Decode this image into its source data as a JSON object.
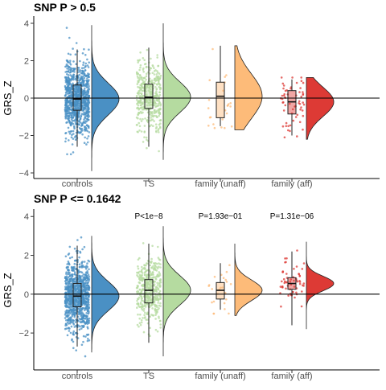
{
  "chart_data": [
    {
      "type": "raincloud",
      "title": "SNP P > 0.5",
      "ylabel": "GRS_Z",
      "ylim": [
        -4.3,
        4.3
      ],
      "yticks": [
        -4,
        -2,
        0,
        2,
        4
      ],
      "reference_line": 0,
      "categories": [
        "controls",
        "TS",
        "family (unaff)",
        "family (aff)"
      ],
      "colors": [
        "#4a90c4",
        "#b5dba0",
        "#fdbb79",
        "#dd3a35"
      ],
      "groups": [
        {
          "name": "controls",
          "box": {
            "whisker_low": -2.6,
            "q1": -0.65,
            "median": -0.05,
            "q3": 0.7,
            "whisker_high": 2.6
          },
          "points_range": [
            -3.0,
            3.8
          ],
          "density_range": [
            -3.9,
            3.9
          ],
          "n_points": 900
        },
        {
          "name": "TS",
          "box": {
            "whisker_low": -2.6,
            "q1": -0.55,
            "median": 0.05,
            "q3": 0.75,
            "whisker_high": 2.7
          },
          "points_range": [
            -3.2,
            3.9
          ],
          "density_range": [
            -3.3,
            4.0
          ],
          "n_points": 420
        },
        {
          "name": "family (unaff)",
          "box": {
            "whisker_low": -1.5,
            "q1": -1.05,
            "median": 0.1,
            "q3": 0.85,
            "whisker_high": 2.8
          },
          "points_range": [
            -1.6,
            2.8
          ],
          "density_range": [
            -1.7,
            2.8
          ],
          "n_points": 24
        },
        {
          "name": "family (aff)",
          "box": {
            "whisker_low": -2.0,
            "q1": -0.85,
            "median": -0.2,
            "q3": 0.4,
            "whisker_high": 1.0
          },
          "points_range": [
            -2.1,
            1.1
          ],
          "density_range": [
            -2.2,
            1.1
          ],
          "n_points": 60
        }
      ]
    },
    {
      "type": "raincloud",
      "title": "SNP P <= 0.1642",
      "ylabel": "GRS_Z",
      "ylim": [
        -3.9,
        4.3
      ],
      "yticks": [
        -2,
        0,
        2,
        4
      ],
      "reference_line": 0,
      "categories": [
        "controls",
        "TS",
        "family (unaff)",
        "family (aff)"
      ],
      "colors": [
        "#4a90c4",
        "#b5dba0",
        "#fdbb79",
        "#dd3a35"
      ],
      "annotations": [
        "",
        "P<1e−8",
        "P=1.93e−01",
        "P=1.31e−06"
      ],
      "groups": [
        {
          "name": "controls",
          "box": {
            "whisker_low": -2.7,
            "q1": -0.65,
            "median": -0.1,
            "q3": 0.55,
            "whisker_high": 2.5
          },
          "points_range": [
            -3.2,
            3.3
          ],
          "density_range": [
            -3.0,
            3.0
          ],
          "n_points": 900
        },
        {
          "name": "TS",
          "box": {
            "whisker_low": -2.5,
            "q1": -0.45,
            "median": 0.2,
            "q3": 0.75,
            "whisker_high": 2.6
          },
          "points_range": [
            -3.2,
            3.2
          ],
          "density_range": [
            -3.2,
            3.5
          ],
          "n_points": 420
        },
        {
          "name": "family (unaff)",
          "box": {
            "whisker_low": -0.8,
            "q1": -0.25,
            "median": 0.2,
            "q3": 0.6,
            "whisker_high": 1.6
          },
          "points_range": [
            -1.0,
            2.5
          ],
          "density_range": [
            -1.1,
            2.6
          ],
          "n_points": 24
        },
        {
          "name": "family (aff)",
          "box": {
            "whisker_low": -1.6,
            "q1": 0.25,
            "median": 0.55,
            "q3": 0.85,
            "whisker_high": 2.2
          },
          "points_range": [
            -1.8,
            2.3
          ],
          "density_range": [
            -1.8,
            2.7
          ],
          "n_points": 60
        }
      ]
    }
  ]
}
